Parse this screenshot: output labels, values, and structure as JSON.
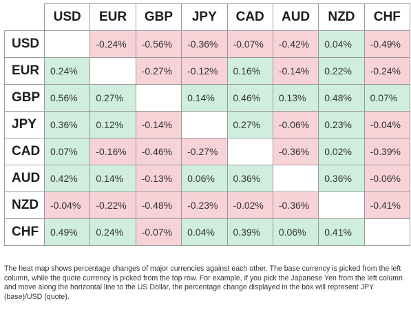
{
  "heatmap": {
    "columns": [
      "USD",
      "EUR",
      "GBP",
      "JPY",
      "CAD",
      "AUD",
      "NZD",
      "CHF"
    ],
    "rows": [
      {
        "label": "USD",
        "cells": [
          "",
          "-0.24%",
          "-0.56%",
          "-0.36%",
          "-0.07%",
          "-0.42%",
          "0.04%",
          "-0.49%"
        ]
      },
      {
        "label": "EUR",
        "cells": [
          "0.24%",
          "",
          "-0.27%",
          "-0.12%",
          "0.16%",
          "-0.14%",
          "0.22%",
          "-0.24%"
        ]
      },
      {
        "label": "GBP",
        "cells": [
          "0.56%",
          "0.27%",
          "",
          "0.14%",
          "0.46%",
          "0.13%",
          "0.48%",
          "0.07%"
        ]
      },
      {
        "label": "JPY",
        "cells": [
          "0.36%",
          "0.12%",
          "-0.14%",
          "",
          "0.27%",
          "-0.06%",
          "0.23%",
          "-0.04%"
        ]
      },
      {
        "label": "CAD",
        "cells": [
          "0.07%",
          "-0.16%",
          "-0.46%",
          "-0.27%",
          "",
          "-0.36%",
          "0.02%",
          "-0.39%"
        ]
      },
      {
        "label": "AUD",
        "cells": [
          "0.42%",
          "0.14%",
          "-0.13%",
          "0.06%",
          "0.36%",
          "",
          "0.36%",
          "-0.06%"
        ]
      },
      {
        "label": "NZD",
        "cells": [
          "-0.04%",
          "-0.22%",
          "-0.48%",
          "-0.23%",
          "-0.02%",
          "-0.36%",
          "",
          "-0.41%"
        ]
      },
      {
        "label": "CHF",
        "cells": [
          "0.49%",
          "0.24%",
          "-0.07%",
          "0.04%",
          "0.39%",
          "0.06%",
          "0.41%",
          ""
        ]
      }
    ]
  },
  "colors": {
    "positive": "#cfeedd",
    "negative": "#f7d2d6",
    "diagonal": "#ffffff",
    "grid": "#9a9a9a"
  },
  "caption": "The heat map shows percentage changes of major currencies against each other. The base currency is picked from the left column, while the quote currency is picked from the top row. For example, if you pick the Japanese Yen from the left column and move along the horizontal line to the US Dollar, the percentage change displayed in the box will represent JPY (base)/USD (quote)."
}
